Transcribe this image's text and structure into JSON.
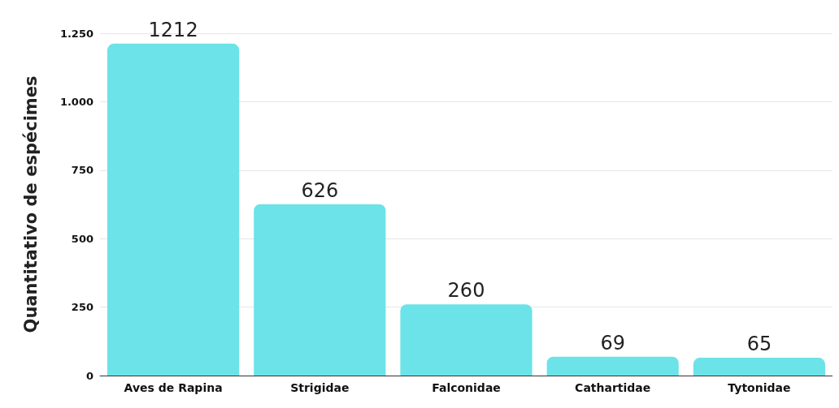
{
  "chart_data": {
    "type": "bar",
    "ylabel": "Quantitativo de espécimes",
    "categories": [
      "Aves de Rapina",
      "Strigidae",
      "Falconidae",
      "Cathartidae",
      "Tytonidae"
    ],
    "values": [
      1212,
      626,
      260,
      69,
      65
    ],
    "color": "#6ce3e8",
    "ylim": [
      0,
      1250
    ],
    "yticks": [
      0,
      250,
      500,
      750,
      {
        "value": 1000,
        "label": "1.000"
      },
      {
        "value": 1250,
        "label": "1.250"
      }
    ],
    "grid": "y",
    "data_labels": true
  }
}
